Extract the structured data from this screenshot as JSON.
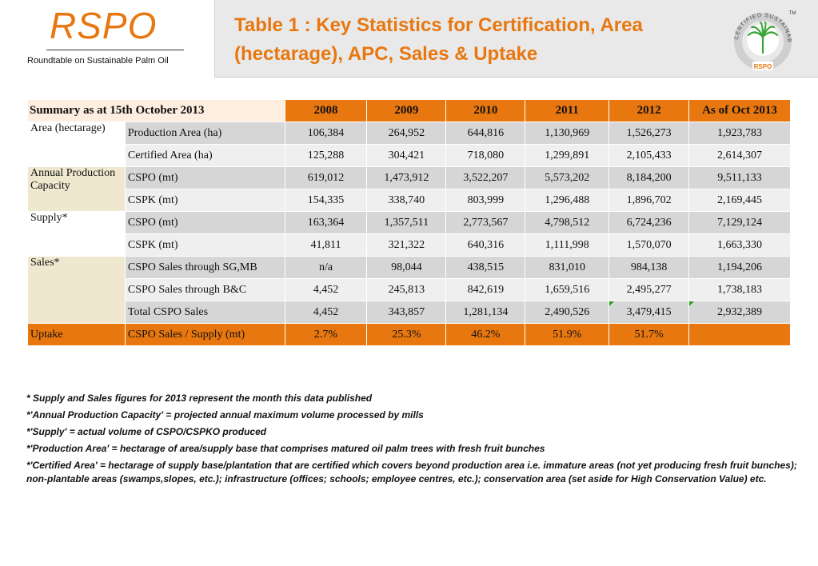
{
  "logo": {
    "text": "RSPO",
    "subtitle": "Roundtable on Sustainable Palm Oil"
  },
  "title": "Table 1 : Key Statistics for Certification, Area (hectarage), APC, Sales & Uptake",
  "seal": {
    "ring_text": "CERTIFIED SUSTAINABLE PALM OIL",
    "badge": "RSPO",
    "tm": "TM"
  },
  "colors": {
    "accent": "#e8770f",
    "header_bg": "#e9e9e9",
    "row_dark": "#d6d6d6",
    "row_light": "#efefef",
    "group_beige": "#efe8cf"
  },
  "table": {
    "summary_label": "Summary as at 15th October 2013",
    "years": [
      "2008",
      "2009",
      "2010",
      "2011",
      "2012",
      "As of Oct 2013"
    ],
    "groups": [
      {
        "label": "Area (hectarage)",
        "rows": [
          {
            "label": "Production Area (ha)",
            "values": [
              "106,384",
              "264,952",
              "644,816",
              "1,130,969",
              "1,526,273",
              "1,923,783"
            ]
          },
          {
            "label": "Certified Area (ha)",
            "values": [
              "125,288",
              "304,421",
              "718,080",
              "1,299,891",
              "2,105,433",
              "2,614,307"
            ]
          }
        ]
      },
      {
        "label": "Annual Production Capacity",
        "rows": [
          {
            "label": "CSPO (mt)",
            "values": [
              "619,012",
              "1,473,912",
              "3,522,207",
              "5,573,202",
              "8,184,200",
              "9,511,133"
            ]
          },
          {
            "label": "CSPK (mt)",
            "values": [
              "154,335",
              "338,740",
              "803,999",
              "1,296,488",
              "1,896,702",
              "2,169,445"
            ]
          }
        ]
      },
      {
        "label": "Supply*",
        "rows": [
          {
            "label": "CSPO (mt)",
            "values": [
              "163,364",
              "1,357,511",
              "2,773,567",
              "4,798,512",
              "6,724,236",
              "7,129,124"
            ]
          },
          {
            "label": "CSPK (mt)",
            "values": [
              "41,811",
              "321,322",
              "640,316",
              "1,111,998",
              "1,570,070",
              "1,663,330"
            ]
          }
        ]
      },
      {
        "label": "Sales*",
        "rows": [
          {
            "label": "CSPO Sales through SG,MB",
            "values": [
              "n/a",
              "98,044",
              "438,515",
              "831,010",
              "984,138",
              "1,194,206"
            ]
          },
          {
            "label": "CSPO Sales through B&C",
            "values": [
              "4,452",
              "245,813",
              "842,619",
              "1,659,516",
              "2,495,277",
              "1,738,183"
            ]
          },
          {
            "label": "Total CSPO Sales",
            "values": [
              "4,452",
              "343,857",
              "1,281,134",
              "2,490,526",
              "3,479,415",
              "2,932,389"
            ]
          }
        ]
      }
    ],
    "uptake": {
      "label": "Uptake",
      "row_label": "CSPO Sales / Supply (mt)",
      "values": [
        "2.7%",
        "25.3%",
        "46.2%",
        "51.9%",
        "51.7%",
        ""
      ]
    }
  },
  "notes": [
    "* Supply and Sales figures for 2013 represent the month this data published",
    "*'Annual Production Capacity' = projected annual maximum volume processed by mills",
    "*'Supply' =  actual volume of CSPO/CSPKO produced",
    "*'Production Area' = hectarage of area/supply base that comprises matured oil palm trees with fresh fruit bunches",
    "*'Certified Area' = hectarage of supply base/plantation that are certified which covers beyond production area i.e. immature areas (not yet producing fresh fruit bunches); non-plantable areas (swamps,slopes, etc.); infrastructure (offices; schools; employee centres, etc.); conservation area (set aside for High Conservation Value) etc."
  ]
}
